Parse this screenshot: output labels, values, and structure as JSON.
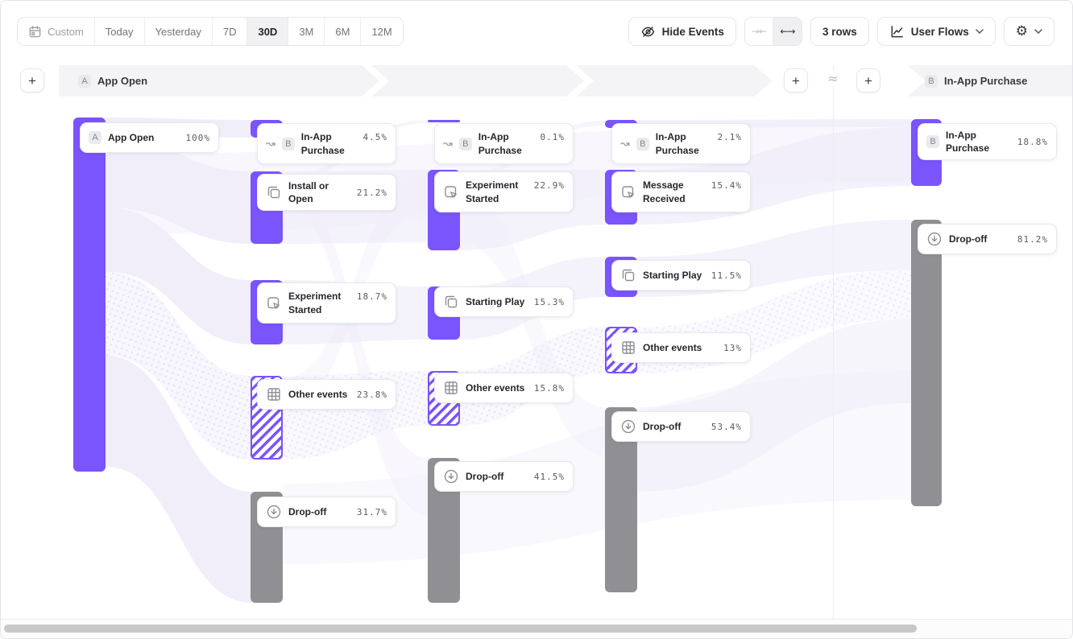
{
  "toolbar": {
    "date_ranges": [
      {
        "label": "Custom",
        "icon": "calendar",
        "selected": false
      },
      {
        "label": "Today",
        "selected": false
      },
      {
        "label": "Yesterday",
        "selected": false
      },
      {
        "label": "7D",
        "selected": false
      },
      {
        "label": "30D",
        "selected": true
      },
      {
        "label": "3M",
        "selected": false
      },
      {
        "label": "6M",
        "selected": false
      },
      {
        "label": "12M",
        "selected": false
      }
    ],
    "hide_events_label": "Hide Events",
    "collapse_icon": "→←",
    "expand_icon": "←→",
    "rows_label": "3 rows",
    "view_label": "User Flows",
    "settings_icon": "⚙"
  },
  "header": {
    "add_label": "+",
    "approx_symbol": "≈",
    "band_a": {
      "badge": "A",
      "label": "App Open"
    },
    "band_b": {
      "badge": "B",
      "label": "In-App Purchase"
    }
  },
  "flow": {
    "columns": [
      {
        "nodes": [
          {
            "badge": "A",
            "label": "App Open",
            "value": "100%",
            "type": "start"
          }
        ]
      },
      {
        "nodes": [
          {
            "icon": "jump",
            "badge": "B",
            "label": "In-App Purchase",
            "value": "4.5%",
            "type": "target"
          },
          {
            "icon": "squares",
            "label": "Install or Open",
            "value": "21.2%",
            "type": "event"
          },
          {
            "icon": "cursor",
            "label": "Experiment Started",
            "value": "18.7%",
            "type": "event"
          },
          {
            "icon": "grid",
            "label": "Other events",
            "value": "23.8%",
            "type": "other"
          },
          {
            "icon": "drop",
            "label": "Drop-off",
            "value": "31.7%",
            "type": "dropoff"
          }
        ]
      },
      {
        "nodes": [
          {
            "icon": "jump",
            "badge": "B",
            "label": "In-App Purchase",
            "value": "0.1%",
            "type": "target"
          },
          {
            "icon": "cursor",
            "label": "Experiment Started",
            "value": "22.9%",
            "type": "event"
          },
          {
            "icon": "squares",
            "label": "Starting Play",
            "value": "15.3%",
            "type": "event"
          },
          {
            "icon": "grid",
            "label": "Other events",
            "value": "15.8%",
            "type": "other"
          },
          {
            "icon": "drop",
            "label": "Drop-off",
            "value": "41.5%",
            "type": "dropoff"
          }
        ]
      },
      {
        "nodes": [
          {
            "icon": "jump",
            "badge": "B",
            "label": "In-App Purchase",
            "value": "2.1%",
            "type": "target"
          },
          {
            "icon": "cursor",
            "label": "Message Received",
            "value": "15.4%",
            "type": "event"
          },
          {
            "icon": "squares",
            "label": "Starting Play",
            "value": "11.5%",
            "type": "event"
          },
          {
            "icon": "grid",
            "label": "Other events",
            "value": "13%",
            "type": "other"
          },
          {
            "icon": "drop",
            "label": "Drop-off",
            "value": "53.4%",
            "type": "dropoff"
          }
        ]
      },
      {
        "nodes": [
          {
            "badge": "B",
            "label": "In-App Purchase",
            "value": "18.8%",
            "type": "target"
          },
          {
            "icon": "drop",
            "label": "Drop-off",
            "value": "81.2%",
            "type": "dropoff"
          }
        ]
      }
    ]
  },
  "colors": {
    "purple": "#7A54FC",
    "gray": "#909094",
    "ribbon": "#EFECFA",
    "ribbon_light": "#F1EEFB",
    "band": "#F4F4F6"
  }
}
